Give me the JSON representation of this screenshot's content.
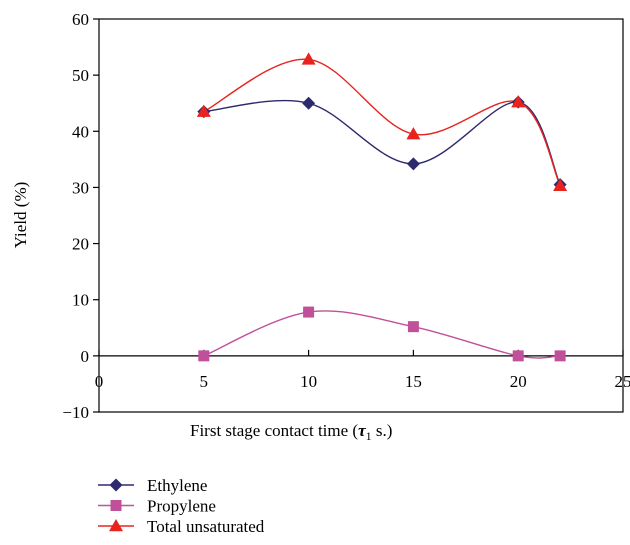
{
  "chart_data": {
    "type": "line",
    "title": "",
    "xlabel": "First stage contact time (",
    "xlabel_symbol": "τ",
    "xlabel_subscript": "1",
    "xlabel_suffix": " s.)",
    "ylabel": "Yield (%)",
    "xlim": [
      0,
      25
    ],
    "ylim": [
      -10,
      60
    ],
    "x_ticks": [
      0,
      5,
      10,
      15,
      20,
      25
    ],
    "y_ticks": [
      -10,
      0,
      10,
      20,
      30,
      40,
      50,
      60
    ],
    "x_tick_labels": [
      "0",
      "5",
      "10",
      "15",
      "20",
      "25"
    ],
    "y_tick_labels": [
      "−10",
      "0",
      "10",
      "20",
      "30",
      "40",
      "50",
      "60"
    ],
    "grid": false,
    "legend_position": "bottom-left, below plot",
    "x": [
      5,
      10,
      15,
      20,
      22
    ],
    "series": [
      {
        "name": "Ethylene",
        "values": [
          43.5,
          45,
          34.2,
          45.2,
          30.5
        ],
        "color": "#2e2a6e",
        "marker": "diamond"
      },
      {
        "name": "Propylene",
        "values": [
          0,
          7.8,
          5.2,
          0,
          0
        ],
        "color": "#c0509a",
        "marker": "square"
      },
      {
        "name": "Total unsaturated",
        "values": [
          43.5,
          52.8,
          39.5,
          45.2,
          30.3
        ],
        "color": "#e8231e",
        "marker": "triangle"
      }
    ]
  }
}
